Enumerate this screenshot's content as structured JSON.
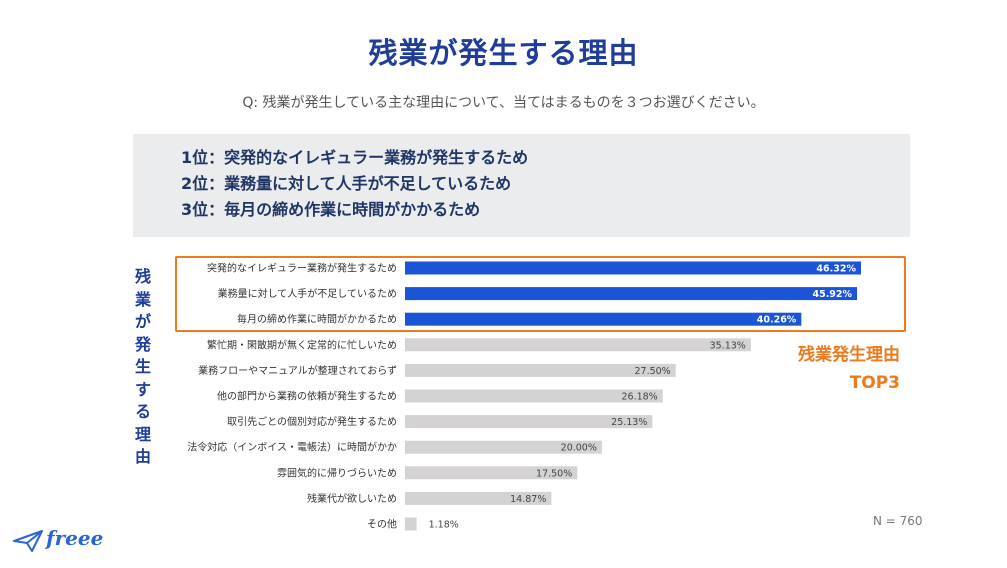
{
  "title": "残業が発生する理由",
  "question": "Q: 残業が発生している主な理由について、当てはまるものを３つお選びください。",
  "summary": [
    "1位：突発的なイレギュラー業務が発生するため",
    "2位：業務量に対して人手が不足しているため",
    "3位：毎月の締め作業に時間がかかるため"
  ],
  "vertical_label": "残業が発生する理由",
  "highlight": {
    "line1": "残業発生理由",
    "line2": "TOP3"
  },
  "sample_size": "N = 760",
  "logo_text": "freee",
  "colors": {
    "title": "#1f3d99",
    "highlight_bar": "#1a55d6",
    "other_bar": "#d4d2d2",
    "accent": "#ee7a1b",
    "summary_bg": "#eaeced"
  },
  "chart_data": {
    "type": "bar",
    "orientation": "horizontal",
    "categories": [
      "突発的なイレギュラー業務が発生するため",
      "業務量に対して人手が不足しているため",
      "毎月の締め作業に時間がかかるため",
      "繁忙期・閑散期が無く定常的に忙しいため",
      "業務フローやマニュアルが整理されておらず",
      "他の部門から業務の依頼が発生するため",
      "取引先ごとの個別対応が発生するため",
      "法令対応（インボイス・電帳法）に時間がかか",
      "雰囲気的に帰りづらいため",
      "残業代が欲しいため",
      "その他"
    ],
    "values": [
      46.32,
      45.92,
      40.26,
      35.13,
      27.5,
      26.18,
      25.13,
      20.0,
      17.5,
      14.87,
      1.18
    ],
    "value_labels": [
      "46.32%",
      "45.92%",
      "40.26%",
      "35.13%",
      "27.50%",
      "26.18%",
      "25.13%",
      "20.00%",
      "17.50%",
      "14.87%",
      "1.18%"
    ],
    "highlighted_top": 3,
    "xlim": [
      0,
      46.32
    ],
    "unit": "%"
  }
}
